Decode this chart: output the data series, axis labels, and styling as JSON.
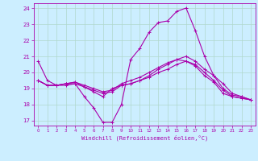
{
  "xlabel": "Windchill (Refroidissement éolien,°C)",
  "background_color": "#cceeff",
  "grid_color": "#b0d8cc",
  "line_color": "#aa00aa",
  "spine_color": "#aa00aa",
  "ylim": [
    16.7,
    24.3
  ],
  "xlim": [
    -0.5,
    23.5
  ],
  "yticks": [
    17,
    18,
    19,
    20,
    21,
    22,
    23,
    24
  ],
  "xticks": [
    0,
    1,
    2,
    3,
    4,
    5,
    6,
    7,
    8,
    9,
    10,
    11,
    12,
    13,
    14,
    15,
    16,
    17,
    18,
    19,
    20,
    21,
    22,
    23
  ],
  "series": [
    [
      20.7,
      19.5,
      19.2,
      19.2,
      19.3,
      18.5,
      17.8,
      16.9,
      16.9,
      18.0,
      20.8,
      21.5,
      22.5,
      23.1,
      23.2,
      23.8,
      24.0,
      22.6,
      21.0,
      19.8,
      19.3,
      18.7,
      18.5,
      18.3
    ],
    [
      19.5,
      19.2,
      19.2,
      19.3,
      19.4,
      19.1,
      18.9,
      18.7,
      18.8,
      19.2,
      19.3,
      19.5,
      19.8,
      20.2,
      20.5,
      20.8,
      20.7,
      20.4,
      19.8,
      19.4,
      18.7,
      18.5,
      18.4,
      18.3
    ],
    [
      19.5,
      19.2,
      19.2,
      19.3,
      19.3,
      19.1,
      18.8,
      18.5,
      19.0,
      19.2,
      19.3,
      19.5,
      19.7,
      20.0,
      20.2,
      20.5,
      20.7,
      20.5,
      20.0,
      19.5,
      18.9,
      18.5,
      18.4,
      18.3
    ],
    [
      19.5,
      19.2,
      19.2,
      19.3,
      19.4,
      19.2,
      19.0,
      18.8,
      18.9,
      19.3,
      19.5,
      19.7,
      20.0,
      20.3,
      20.6,
      20.8,
      21.0,
      20.7,
      20.2,
      19.8,
      19.0,
      18.6,
      18.5,
      18.3
    ]
  ]
}
